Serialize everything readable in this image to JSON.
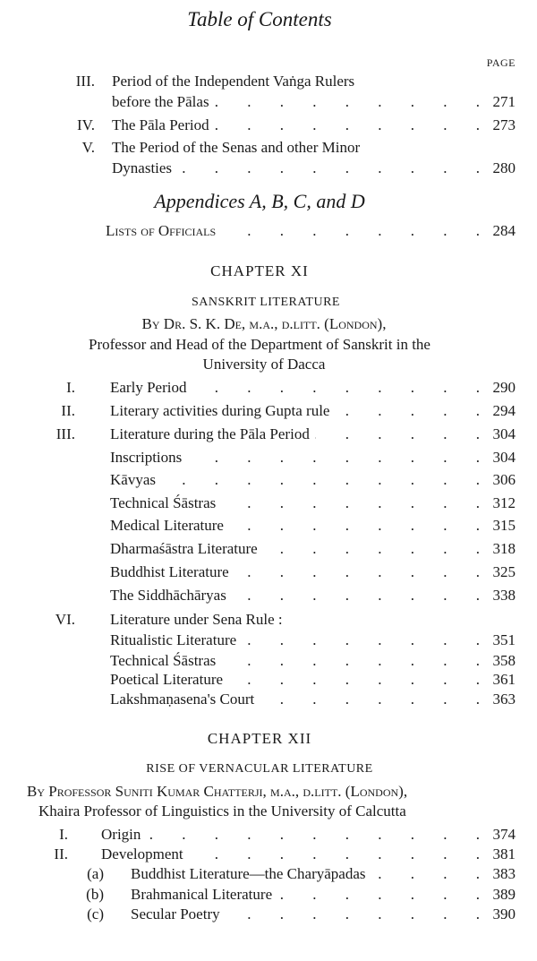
{
  "header": {
    "title": "Table of Contents",
    "page_label": "PAGE"
  },
  "chapter_x_entries": [
    {
      "num": "III.",
      "text": "Period of the Independent Vaṅga Rulers",
      "text2": "before the Pālas",
      "page": "271"
    },
    {
      "num": "IV.",
      "text": "The Pāla Period",
      "page": "273"
    },
    {
      "num": "V.",
      "text": "The Period of the Senas and other Minor",
      "text2": "Dynasties",
      "page": "280"
    }
  ],
  "appendices": {
    "heading": "Appendices A, B, C, and D",
    "entry": "Lists of Officials",
    "page": "284"
  },
  "chapter_xi": {
    "heading": "CHAPTER XI",
    "subject": "SANSKRIT LITERATURE",
    "author_line1": "By Dr. S. K. De, m.a., d.litt. (London),",
    "author_line2": "Professor and Head of the Department of Sanskrit in the",
    "author_line3": "University of Dacca",
    "entries": [
      {
        "num": "I.",
        "text": "Early Period",
        "page": "290"
      },
      {
        "num": "II.",
        "text": "Literary activities during Gupta rule",
        "page": "294"
      },
      {
        "num": "III.",
        "text": "Literature during the Pāla Period",
        "page": "304"
      },
      {
        "num": "",
        "text": "Inscriptions",
        "page": "304"
      },
      {
        "num": "",
        "text": "Kāvyas",
        "page": "306"
      },
      {
        "num": "",
        "text": "Technical Śāstras",
        "page": "312"
      },
      {
        "num": "",
        "text": "Medical Literature",
        "page": "315"
      },
      {
        "num": "",
        "text": "Dharmaśāstra Literature",
        "page": "318"
      },
      {
        "num": "",
        "text": "Buddhist Literature",
        "page": "325"
      },
      {
        "num": "",
        "text": "The Siddhāchāryas",
        "page": "338"
      },
      {
        "num": "VI.",
        "text": "Literature under Sena Rule :",
        "page": ""
      },
      {
        "num": "",
        "text": "Ritualistic Literature",
        "page": "351"
      },
      {
        "num": "",
        "text": "Technical Śāstras",
        "page": "358"
      },
      {
        "num": "",
        "text": "Poetical Literature",
        "page": "361"
      },
      {
        "num": "",
        "text": "Lakshmaṇasena's Court",
        "page": "363"
      }
    ]
  },
  "chapter_xii": {
    "heading": "CHAPTER XII",
    "subject": "RISE OF VERNACULAR LITERATURE",
    "author_line1": "By Professor Suniti Kumar Chatterji, m.a., d.litt. (London),",
    "author_line2": "Khaira Professor of Linguistics in the University of Calcutta",
    "entries": [
      {
        "num": "I.",
        "text": "Origin",
        "page": "374"
      },
      {
        "num": "II.",
        "text": "Development",
        "page": "381"
      },
      {
        "num": "(a)",
        "text": "Buddhist Literature—the Charyāpadas",
        "page": "383"
      },
      {
        "num": "(b)",
        "text": "Brahmanical Literature",
        "page": "389"
      },
      {
        "num": "(c)",
        "text": "Secular Poetry",
        "page": "390"
      }
    ]
  }
}
